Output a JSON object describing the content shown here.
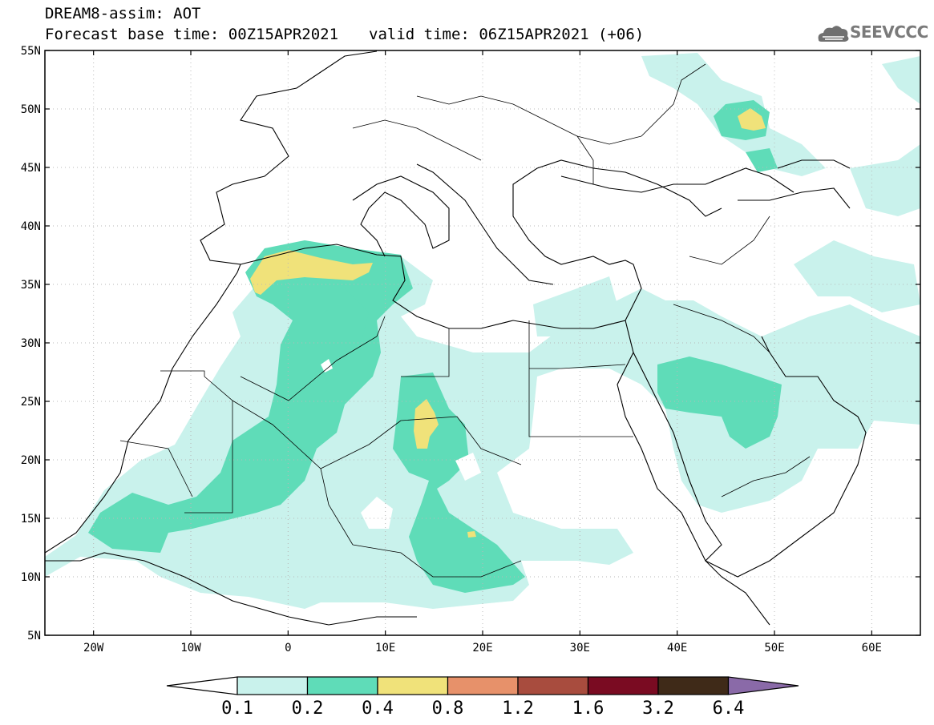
{
  "header": {
    "title_line1": "DREAM8-assim: AOT",
    "base_time_label": "Forecast base time: 00Z15APR2021",
    "valid_time_label": "valid time: 06Z15APR2021 (+06)",
    "logo_text": "SEEVCCC",
    "logo_icon": "cloud-icon"
  },
  "map": {
    "lat_labels": [
      "55N",
      "50N",
      "45N",
      "40N",
      "35N",
      "30N",
      "25N",
      "20N",
      "15N",
      "10N",
      "5N"
    ],
    "lon_labels": [
      "20W",
      "10W",
      "0",
      "10E",
      "20E",
      "30E",
      "40E",
      "50E",
      "60E"
    ],
    "lon_range": [
      -25,
      65
    ],
    "lat_range": [
      5,
      55
    ]
  },
  "legend": {
    "colors": [
      "#c9f2ec",
      "#5fdcb8",
      "#f0e27a",
      "#e7916a",
      "#a84c3e",
      "#7a0b22",
      "#3f2a18"
    ],
    "under_color": "#ffffff",
    "over_color": "#8a6aa8",
    "labels": [
      "0.1",
      "0.2",
      "0.4",
      "0.8",
      "1.2",
      "1.6",
      "3.2",
      "6.4"
    ]
  }
}
